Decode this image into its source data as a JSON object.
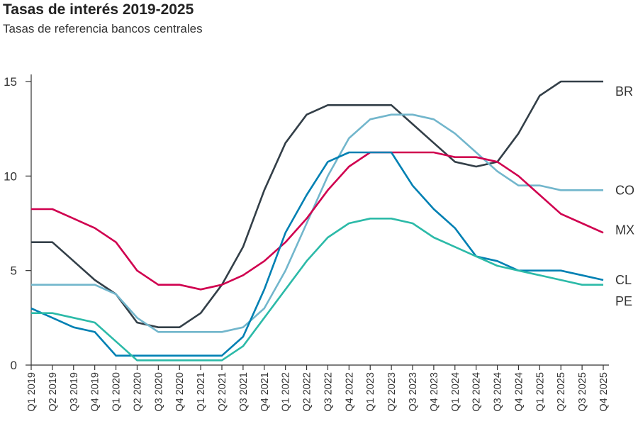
{
  "chart_data": {
    "type": "line",
    "title": "Tasas de interés 2019-2025",
    "subtitle": "Tasas de referencia bancos centrales",
    "xlabel": "",
    "ylabel": "",
    "ylim": [
      0,
      15
    ],
    "yticks": [
      "0",
      "5",
      "10",
      "15"
    ],
    "grid": false,
    "legend": "end-of-line labels, right",
    "categories": [
      "Q1 2019",
      "Q2 2019",
      "Q3 2019",
      "Q4 2019",
      "Q1 2020",
      "Q2 2020",
      "Q3 2020",
      "Q4 2020",
      "Q1 2021",
      "Q2 2021",
      "Q3 2021",
      "Q4 2021",
      "Q1 2022",
      "Q2 2022",
      "Q3 2022",
      "Q4 2022",
      "Q1 2023",
      "Q2 2023",
      "Q3 2023",
      "Q4 2023",
      "Q1 2024",
      "Q2 2024",
      "Q3 2024",
      "Q4 2024",
      "Q1 2025",
      "Q2 2025",
      "Q3 2025",
      "Q4 2025"
    ],
    "series": [
      {
        "name": "BR",
        "color": "#333f48",
        "values": [
          6.5,
          6.5,
          5.5,
          4.5,
          3.75,
          2.25,
          2.0,
          2.0,
          2.75,
          4.25,
          6.25,
          9.25,
          11.75,
          13.25,
          13.75,
          13.75,
          13.75,
          13.75,
          12.75,
          11.75,
          10.75,
          10.5,
          10.75,
          12.25,
          14.25,
          15,
          15,
          15
        ]
      },
      {
        "name": "CO",
        "color": "#72b6cc",
        "values": [
          4.25,
          4.25,
          4.25,
          4.25,
          3.75,
          2.5,
          1.75,
          1.75,
          1.75,
          1.75,
          2.0,
          3.0,
          5.0,
          7.5,
          10.0,
          12.0,
          13.0,
          13.25,
          13.25,
          13.0,
          12.25,
          11.25,
          10.25,
          9.5,
          9.5,
          9.25,
          9.25,
          9.25
        ]
      },
      {
        "name": "MX",
        "color": "#d0004f",
        "values": [
          8.25,
          8.25,
          7.75,
          7.25,
          6.5,
          5.0,
          4.25,
          4.25,
          4.0,
          4.25,
          4.75,
          5.5,
          6.5,
          7.75,
          9.25,
          10.5,
          11.25,
          11.25,
          11.25,
          11.25,
          11.0,
          11.0,
          10.75,
          10.0,
          9.0,
          8.0,
          7.5,
          7.0
        ]
      },
      {
        "name": "CL",
        "color": "#0080b3",
        "values": [
          3.0,
          2.5,
          2.0,
          1.75,
          0.5,
          0.5,
          0.5,
          0.5,
          0.5,
          0.5,
          1.5,
          4.0,
          7.0,
          9.0,
          10.75,
          11.25,
          11.25,
          11.25,
          9.5,
          8.25,
          7.25,
          5.75,
          5.5,
          5.0,
          5.0,
          5.0,
          4.75,
          4.5
        ]
      },
      {
        "name": "PE",
        "color": "#2cbaa8",
        "values": [
          2.75,
          2.75,
          2.5,
          2.25,
          1.25,
          0.25,
          0.25,
          0.25,
          0.25,
          0.25,
          1.0,
          2.5,
          4.0,
          5.5,
          6.75,
          7.5,
          7.75,
          7.75,
          7.5,
          6.75,
          6.25,
          5.75,
          5.25,
          5.0,
          4.75,
          4.5,
          4.25,
          4.25
        ]
      }
    ]
  }
}
